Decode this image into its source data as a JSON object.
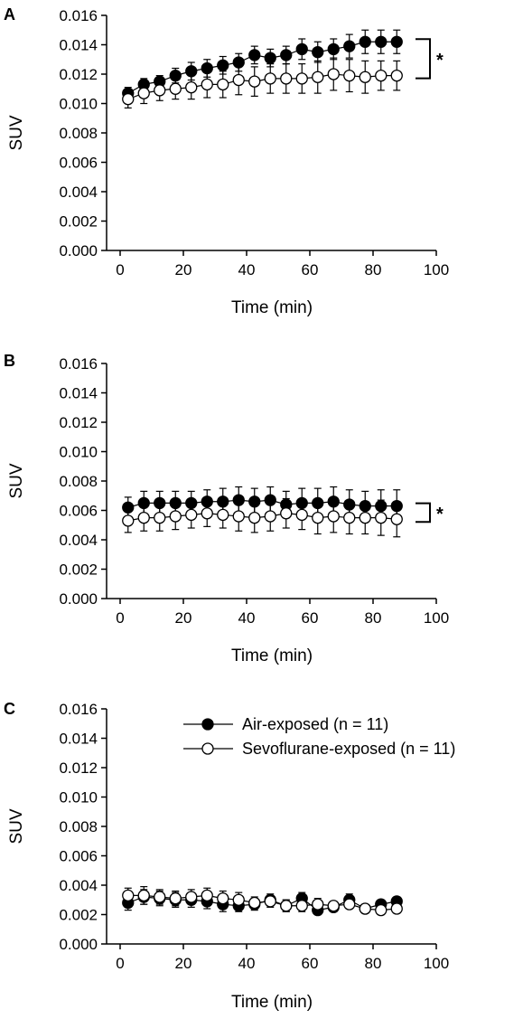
{
  "legend": {
    "entries": [
      {
        "label": "Air-exposed (n = 11)",
        "marker": "filled-circle"
      },
      {
        "label": "Sevoflurane-exposed (n = 11)",
        "marker": "open-circle"
      }
    ]
  },
  "colors": {
    "filled_marker": "#000000",
    "open_marker": "#ffffff",
    "stroke": "#000000"
  },
  "chart_data": [
    {
      "type": "scatter",
      "panel_label": "A",
      "xlabel": "Time (min)",
      "ylabel": "SUV",
      "xlim": [
        0,
        100
      ],
      "ylim": [
        0,
        0.016
      ],
      "xticks": [
        "0",
        "20",
        "40",
        "60",
        "80",
        "100"
      ],
      "yticks": [
        "0.000",
        "0.002",
        "0.004",
        "0.006",
        "0.008",
        "0.010",
        "0.012",
        "0.014",
        "0.016"
      ],
      "grid": false,
      "significance": "*",
      "x": [
        2.5,
        7.5,
        12.5,
        17.5,
        22.5,
        27.5,
        32.5,
        37.5,
        42.5,
        47.5,
        52.5,
        57.5,
        62.5,
        67.5,
        72.5,
        77.5,
        82.5,
        87.5
      ],
      "series": [
        {
          "name": "Air-exposed (n = 11)",
          "marker": "filled",
          "values": [
            0.0107,
            0.0113,
            0.0115,
            0.0119,
            0.0122,
            0.0124,
            0.0126,
            0.0128,
            0.0133,
            0.0131,
            0.0133,
            0.0137,
            0.0135,
            0.0137,
            0.0139,
            0.0142,
            0.0142,
            0.0142
          ],
          "errors": [
            0.0004,
            0.0004,
            0.0004,
            0.0005,
            0.0006,
            0.0006,
            0.0006,
            0.0006,
            0.0006,
            0.0006,
            0.0006,
            0.0007,
            0.0007,
            0.0007,
            0.0008,
            0.0008,
            0.0008,
            0.0008
          ]
        },
        {
          "name": "Sevoflurane-exposed (n = 11)",
          "marker": "open",
          "values": [
            0.0103,
            0.0107,
            0.0109,
            0.011,
            0.0111,
            0.0113,
            0.0113,
            0.0116,
            0.0115,
            0.0117,
            0.0117,
            0.0117,
            0.0118,
            0.012,
            0.0119,
            0.0118,
            0.0119,
            0.0119
          ],
          "errors": [
            0.0006,
            0.0007,
            0.0007,
            0.0007,
            0.0008,
            0.0009,
            0.0009,
            0.001,
            0.001,
            0.001,
            0.001,
            0.001,
            0.0011,
            0.0011,
            0.0011,
            0.0011,
            0.001,
            0.001
          ]
        }
      ]
    },
    {
      "type": "scatter",
      "panel_label": "B",
      "xlabel": "Time (min)",
      "ylabel": "SUV",
      "xlim": [
        0,
        100
      ],
      "ylim": [
        0,
        0.016
      ],
      "xticks": [
        "0",
        "20",
        "40",
        "60",
        "80",
        "100"
      ],
      "yticks": [
        "0.000",
        "0.002",
        "0.004",
        "0.006",
        "0.008",
        "0.010",
        "0.012",
        "0.014",
        "0.016"
      ],
      "grid": false,
      "significance": "*",
      "x": [
        2.5,
        7.5,
        12.5,
        17.5,
        22.5,
        27.5,
        32.5,
        37.5,
        42.5,
        47.5,
        52.5,
        57.5,
        62.5,
        67.5,
        72.5,
        77.5,
        82.5,
        87.5
      ],
      "series": [
        {
          "name": "Air-exposed (n = 11)",
          "marker": "filled",
          "values": [
            0.0062,
            0.0065,
            0.0065,
            0.0065,
            0.0065,
            0.0066,
            0.0066,
            0.0067,
            0.0066,
            0.0067,
            0.0064,
            0.0065,
            0.0065,
            0.0066,
            0.0064,
            0.0063,
            0.0063,
            0.0063
          ],
          "errors": [
            0.0007,
            0.0008,
            0.0008,
            0.0008,
            0.0008,
            0.0008,
            0.0009,
            0.0009,
            0.0009,
            0.0009,
            0.0009,
            0.001,
            0.001,
            0.001,
            0.001,
            0.001,
            0.0011,
            0.0011
          ]
        },
        {
          "name": "Sevoflurane-exposed (n = 11)",
          "marker": "open",
          "values": [
            0.0053,
            0.0055,
            0.0055,
            0.0056,
            0.0057,
            0.0058,
            0.0057,
            0.0056,
            0.0055,
            0.0056,
            0.0058,
            0.0057,
            0.0055,
            0.0056,
            0.0055,
            0.0055,
            0.0055,
            0.0054
          ],
          "errors": [
            0.0008,
            0.0009,
            0.0009,
            0.0009,
            0.0009,
            0.0009,
            0.0009,
            0.001,
            0.001,
            0.001,
            0.001,
            0.001,
            0.0011,
            0.0011,
            0.0011,
            0.0011,
            0.0012,
            0.0012
          ]
        }
      ]
    },
    {
      "type": "scatter",
      "panel_label": "C",
      "xlabel": "Time (min)",
      "ylabel": "SUV",
      "xlim": [
        0,
        100
      ],
      "ylim": [
        0,
        0.016
      ],
      "xticks": [
        "0",
        "20",
        "40",
        "60",
        "80",
        "100"
      ],
      "yticks": [
        "0.000",
        "0.002",
        "0.004",
        "0.006",
        "0.008",
        "0.010",
        "0.012",
        "0.014",
        "0.016"
      ],
      "grid": false,
      "significance": "",
      "legend_position": "top-right",
      "x": [
        2.5,
        7.5,
        12.5,
        17.5,
        22.5,
        27.5,
        32.5,
        37.5,
        42.5,
        47.5,
        52.5,
        57.5,
        62.5,
        67.5,
        72.5,
        77.5,
        82.5,
        87.5
      ],
      "series": [
        {
          "name": "Air-exposed (n = 11)",
          "marker": "filled",
          "values": [
            0.0028,
            0.0032,
            0.0031,
            0.003,
            0.003,
            0.0029,
            0.0027,
            0.0026,
            0.0027,
            0.003,
            0.0026,
            0.0031,
            0.0023,
            0.0025,
            0.003,
            0.0024,
            0.0027,
            0.0029
          ],
          "errors": [
            0.0005,
            0.0005,
            0.0005,
            0.0005,
            0.0005,
            0.0005,
            0.0005,
            0.0004,
            0.0004,
            0.0004,
            0.0004,
            0.0004,
            0.0003,
            0.0003,
            0.0004,
            0.0003,
            0.0003,
            0.0003
          ]
        },
        {
          "name": "Sevoflurane-exposed (n = 11)",
          "marker": "open",
          "values": [
            0.0033,
            0.0033,
            0.0032,
            0.0031,
            0.0032,
            0.0033,
            0.0031,
            0.003,
            0.0028,
            0.0029,
            0.0026,
            0.0026,
            0.0027,
            0.0026,
            0.0027,
            0.0024,
            0.0023,
            0.0024
          ],
          "errors": [
            0.0005,
            0.0006,
            0.0005,
            0.0005,
            0.0005,
            0.0005,
            0.0005,
            0.0005,
            0.0004,
            0.0004,
            0.0004,
            0.0004,
            0.0004,
            0.0003,
            0.0003,
            0.0003,
            0.0003,
            0.0003
          ]
        }
      ]
    }
  ]
}
